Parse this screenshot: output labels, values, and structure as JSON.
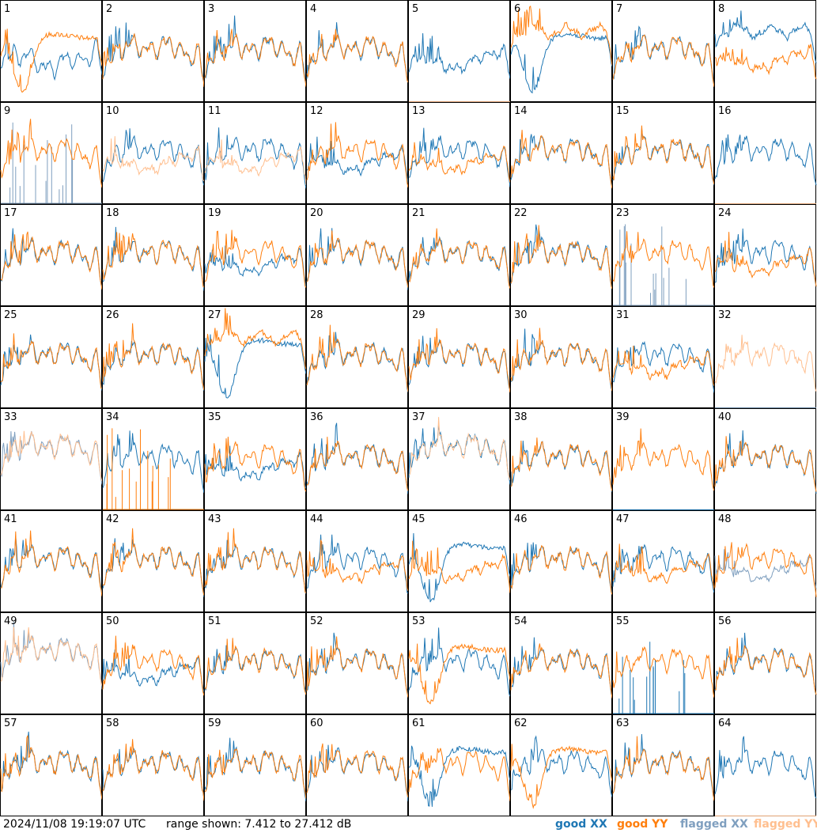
{
  "colors": {
    "good_xx": "#1f77b4",
    "good_yy": "#ff7f0e",
    "flagged_xx": "#7f9fbf",
    "flagged_yy": "#ffbf8f"
  },
  "footer": {
    "timestamp": "2024/11/08 19:19:07 UTC",
    "range_text": "range shown: 7.412 to 27.412 dB"
  },
  "legend": {
    "good_xx": "good XX",
    "good_yy": "good YY",
    "flagged_xx": "flagged XX",
    "flagged_yy": "flagged YY"
  },
  "chart_data": {
    "type": "line",
    "grid": "8x8 small multiples",
    "ylim": [
      7.412,
      27.412
    ],
    "yunit": "dB",
    "panels": [
      {
        "id": "1",
        "xx": "good",
        "yy": "good",
        "xx_shape": "dip-lo",
        "yy_shape": "deep-dip"
      },
      {
        "id": "2",
        "xx": "good",
        "yy": "good",
        "xx_shape": "normal",
        "yy_shape": "normal"
      },
      {
        "id": "3",
        "xx": "good",
        "yy": "good",
        "xx_shape": "normal",
        "yy_shape": "normal"
      },
      {
        "id": "4",
        "xx": "good",
        "yy": "good",
        "xx_shape": "normal",
        "yy_shape": "normal"
      },
      {
        "id": "5",
        "xx": "good",
        "yy": "flagged",
        "xx_shape": "dip",
        "yy_shape": "flat-zero"
      },
      {
        "id": "6",
        "xx": "good",
        "yy": "good",
        "xx_shape": "deep-dip",
        "yy_shape": "high-flat"
      },
      {
        "id": "7",
        "xx": "good",
        "yy": "good",
        "xx_shape": "normal",
        "yy_shape": "normal"
      },
      {
        "id": "8",
        "xx": "good",
        "yy": "good",
        "xx_shape": "high-flat",
        "yy_shape": "dip"
      },
      {
        "id": "9",
        "xx": "flagged",
        "yy": "good",
        "xx_shape": "spikes-zero",
        "yy_shape": "normal"
      },
      {
        "id": "10",
        "xx": "good",
        "yy": "flagged",
        "xx_shape": "normal",
        "yy_shape": "dip"
      },
      {
        "id": "11",
        "xx": "good",
        "yy": "flagged",
        "xx_shape": "normal",
        "yy_shape": "dip"
      },
      {
        "id": "12",
        "xx": "good",
        "yy": "good",
        "xx_shape": "dip",
        "yy_shape": "normal"
      },
      {
        "id": "13",
        "xx": "good",
        "yy": "good",
        "xx_shape": "normal",
        "yy_shape": "dip"
      },
      {
        "id": "14",
        "xx": "good",
        "yy": "good",
        "xx_shape": "normal",
        "yy_shape": "normal"
      },
      {
        "id": "15",
        "xx": "good",
        "yy": "good",
        "xx_shape": "normal",
        "yy_shape": "normal"
      },
      {
        "id": "16",
        "xx": "good",
        "yy": "flagged",
        "xx_shape": "normal",
        "yy_shape": "flat-zero"
      },
      {
        "id": "17",
        "xx": "good",
        "yy": "good",
        "xx_shape": "normal",
        "yy_shape": "normal"
      },
      {
        "id": "18",
        "xx": "good",
        "yy": "good",
        "xx_shape": "normal",
        "yy_shape": "normal"
      },
      {
        "id": "19",
        "xx": "good",
        "yy": "good",
        "xx_shape": "dip",
        "yy_shape": "normal"
      },
      {
        "id": "20",
        "xx": "good",
        "yy": "good",
        "xx_shape": "normal",
        "yy_shape": "normal"
      },
      {
        "id": "21",
        "xx": "good",
        "yy": "good",
        "xx_shape": "normal",
        "yy_shape": "normal"
      },
      {
        "id": "22",
        "xx": "good",
        "yy": "good",
        "xx_shape": "normal",
        "yy_shape": "normal"
      },
      {
        "id": "23",
        "xx": "flagged",
        "yy": "good",
        "xx_shape": "spikes-zero",
        "yy_shape": "normal"
      },
      {
        "id": "24",
        "xx": "good",
        "yy": "good",
        "xx_shape": "normal",
        "yy_shape": "dip"
      },
      {
        "id": "25",
        "xx": "good",
        "yy": "good",
        "xx_shape": "normal",
        "yy_shape": "normal"
      },
      {
        "id": "26",
        "xx": "good",
        "yy": "good",
        "xx_shape": "normal",
        "yy_shape": "normal"
      },
      {
        "id": "27",
        "xx": "good",
        "yy": "good",
        "xx_shape": "deep-dip",
        "yy_shape": "high-flat"
      },
      {
        "id": "28",
        "xx": "good",
        "yy": "good",
        "xx_shape": "normal",
        "yy_shape": "normal"
      },
      {
        "id": "29",
        "xx": "good",
        "yy": "good",
        "xx_shape": "normal",
        "yy_shape": "normal"
      },
      {
        "id": "30",
        "xx": "good",
        "yy": "good",
        "xx_shape": "normal",
        "yy_shape": "normal"
      },
      {
        "id": "31",
        "xx": "good",
        "yy": "good",
        "xx_shape": "normal",
        "yy_shape": "dip"
      },
      {
        "id": "32",
        "xx": "flagged",
        "yy": "flagged",
        "xx_shape": "flat-zero",
        "yy_shape": "normal"
      },
      {
        "id": "33",
        "xx": "flagged",
        "yy": "flagged",
        "xx_shape": "high",
        "yy_shape": "high"
      },
      {
        "id": "34",
        "xx": "good",
        "yy": "good",
        "xx_shape": "normal",
        "yy_shape": "spikes-zero"
      },
      {
        "id": "35",
        "xx": "good",
        "yy": "good",
        "xx_shape": "dip",
        "yy_shape": "normal"
      },
      {
        "id": "36",
        "xx": "good",
        "yy": "good",
        "xx_shape": "normal",
        "yy_shape": "normal"
      },
      {
        "id": "37",
        "xx": "good",
        "yy": "flagged",
        "xx_shape": "high",
        "yy_shape": "high"
      },
      {
        "id": "38",
        "xx": "good",
        "yy": "good",
        "xx_shape": "normal",
        "yy_shape": "normal"
      },
      {
        "id": "39",
        "xx": "good",
        "yy": "good",
        "xx_shape": "flat-zero",
        "yy_shape": "normal"
      },
      {
        "id": "40",
        "xx": "good",
        "yy": "good",
        "xx_shape": "normal",
        "yy_shape": "normal"
      },
      {
        "id": "41",
        "xx": "good",
        "yy": "good",
        "xx_shape": "normal",
        "yy_shape": "normal"
      },
      {
        "id": "42",
        "xx": "good",
        "yy": "good",
        "xx_shape": "normal",
        "yy_shape": "normal"
      },
      {
        "id": "43",
        "xx": "good",
        "yy": "good",
        "xx_shape": "normal",
        "yy_shape": "normal"
      },
      {
        "id": "44",
        "xx": "good",
        "yy": "good",
        "xx_shape": "normal",
        "yy_shape": "dip"
      },
      {
        "id": "45",
        "xx": "good",
        "yy": "good",
        "xx_shape": "deep-dip",
        "yy_shape": "dip"
      },
      {
        "id": "46",
        "xx": "good",
        "yy": "good",
        "xx_shape": "normal",
        "yy_shape": "normal"
      },
      {
        "id": "47",
        "xx": "good",
        "yy": "good",
        "xx_shape": "normal",
        "yy_shape": "dip"
      },
      {
        "id": "48",
        "xx": "flagged",
        "yy": "good",
        "xx_shape": "dip",
        "yy_shape": "normal"
      },
      {
        "id": "49",
        "xx": "flagged",
        "yy": "flagged",
        "xx_shape": "high",
        "yy_shape": "high"
      },
      {
        "id": "50",
        "xx": "good",
        "yy": "good",
        "xx_shape": "dip",
        "yy_shape": "normal"
      },
      {
        "id": "51",
        "xx": "good",
        "yy": "good",
        "xx_shape": "normal",
        "yy_shape": "normal"
      },
      {
        "id": "52",
        "xx": "good",
        "yy": "good",
        "xx_shape": "normal",
        "yy_shape": "normal"
      },
      {
        "id": "53",
        "xx": "good",
        "yy": "good",
        "xx_shape": "normal",
        "yy_shape": "deep-dip"
      },
      {
        "id": "54",
        "xx": "good",
        "yy": "good",
        "xx_shape": "normal",
        "yy_shape": "normal"
      },
      {
        "id": "55",
        "xx": "good",
        "yy": "good",
        "xx_shape": "spikes-zero",
        "yy_shape": "normal"
      },
      {
        "id": "56",
        "xx": "good",
        "yy": "good",
        "xx_shape": "normal",
        "yy_shape": "normal"
      },
      {
        "id": "57",
        "xx": "good",
        "yy": "good",
        "xx_shape": "normal",
        "yy_shape": "normal"
      },
      {
        "id": "58",
        "xx": "good",
        "yy": "good",
        "xx_shape": "normal",
        "yy_shape": "normal"
      },
      {
        "id": "59",
        "xx": "good",
        "yy": "good",
        "xx_shape": "normal",
        "yy_shape": "normal"
      },
      {
        "id": "60",
        "xx": "good",
        "yy": "good",
        "xx_shape": "normal",
        "yy_shape": "normal"
      },
      {
        "id": "61",
        "xx": "good",
        "yy": "good",
        "xx_shape": "deep-dip",
        "yy_shape": "normal"
      },
      {
        "id": "62",
        "xx": "good",
        "yy": "good",
        "xx_shape": "normal",
        "yy_shape": "deep-dip"
      },
      {
        "id": "63",
        "xx": "good",
        "yy": "good",
        "xx_shape": "normal",
        "yy_shape": "normal"
      },
      {
        "id": "64",
        "xx": "good",
        "yy": "flagged",
        "xx_shape": "normal",
        "yy_shape": "flat-zero"
      }
    ]
  }
}
